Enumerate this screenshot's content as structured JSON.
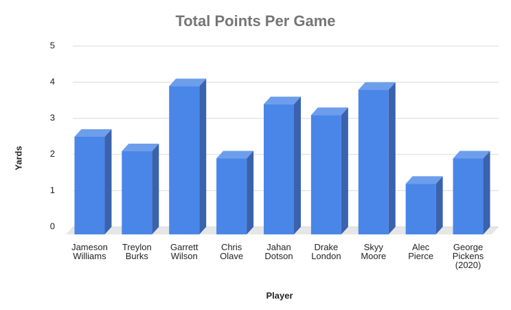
{
  "chart_data": {
    "type": "bar",
    "title": "Total Points Per Game",
    "x_label": "Player",
    "y_label": "Yards",
    "categories": [
      "Jameson Williams",
      "Treylon Burks",
      "Garrett Wilson",
      "Chris Olave",
      "Jahan Dotson",
      "Drake London",
      "Skyy Moore",
      "Alec Pierce",
      "George Pickens (2020)"
    ],
    "values": [
      2.7,
      2.3,
      4.1,
      2.1,
      3.6,
      3.3,
      4.0,
      1.4,
      2.1
    ],
    "color": "#4a86e8",
    "ylim": [
      0,
      5
    ],
    "yticks": [
      0,
      1,
      2,
      3,
      4,
      5
    ],
    "grid": true
  }
}
